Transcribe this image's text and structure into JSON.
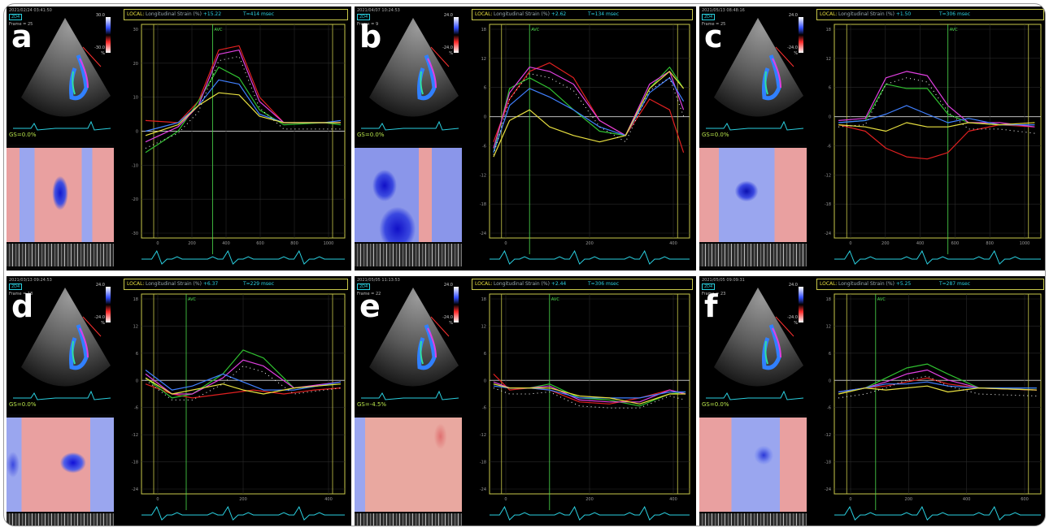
{
  "figure": {
    "panels": [
      {
        "id": "a",
        "letter": "a",
        "timestamp": "2021/02/24 03:41:50",
        "mode": "2D4",
        "frame": "Frame = 25",
        "scale_top": "30.0",
        "scale_bottom": "-30.0",
        "scale_unit": "%",
        "gs": "GS=0.0%",
        "local": "LOCAL:",
        "title": "Longitudinal Strain (%) ",
        "value": "+15.22",
        "time": "T=414 msec",
        "avc": "AVC"
      },
      {
        "id": "b",
        "letter": "b",
        "timestamp": "2021/04/07 10:24:53",
        "mode": "2D4",
        "frame": "Frame = 9",
        "scale_top": "24.0",
        "scale_bottom": "-24.0",
        "scale_unit": "%",
        "gs": "GS=0.0%",
        "local": "LOCAL:",
        "title": "Longitudinal Strain (%) ",
        "value": "+2.62",
        "time": "T=134 msec",
        "avc": "AVC"
      },
      {
        "id": "c",
        "letter": "c",
        "timestamp": "2021/05/13 08:48:16",
        "mode": "2D4",
        "frame": "Frame = 25",
        "scale_top": "24.0",
        "scale_bottom": "-24.0",
        "scale_unit": "%",
        "gs": "GS=0.0%",
        "local": "LOCAL:",
        "title": "Longitudinal Strain (%) ",
        "value": "+1.50",
        "time": "T=306 msec",
        "avc": "AVC"
      },
      {
        "id": "d",
        "letter": "d",
        "timestamp": "2021/03/13 09:24:53",
        "mode": "2D4",
        "frame": "Frame = 18",
        "scale_top": "24.0",
        "scale_bottom": "-24.0",
        "scale_unit": "%",
        "gs": "GS=0.0%",
        "local": "LOCAL:",
        "title": "Longitudinal Strain (%) ",
        "value": "+6.37",
        "time": "T=229 msec",
        "avc": "AVC"
      },
      {
        "id": "e",
        "letter": "e",
        "timestamp": "2021/05/05 11:13:53",
        "mode": "2D4",
        "frame": "Frame = 22",
        "scale_top": "24.0",
        "scale_bottom": "-24.0",
        "scale_unit": "%",
        "gs": "GS=-4.5%",
        "local": "LOCAL:",
        "title": "Longitudinal Strain (%) ",
        "value": "+2.44",
        "time": "T=306 msec",
        "avc": "AVC"
      },
      {
        "id": "f",
        "letter": "f",
        "timestamp": "2021/05/05 09:09:31",
        "mode": "2D4",
        "frame": "Frame = 23",
        "scale_top": "24.0",
        "scale_bottom": "-24.0",
        "scale_unit": "%",
        "gs": "GS=0.0%",
        "local": "LOCAL:",
        "title": "Longitudinal Strain (%) ",
        "value": "+5.25",
        "time": "T=287 msec",
        "avc": "AVC"
      }
    ]
  },
  "colors": {
    "yellow_axis": "#c8c84a",
    "green_marker": "#4cdc4c",
    "cyan": "#2ad0e0",
    "series": [
      "#e02020",
      "#30c030",
      "#e040e0",
      "#4080ff",
      "#e8e040",
      "#20d0d0",
      "#ffffff"
    ]
  }
}
